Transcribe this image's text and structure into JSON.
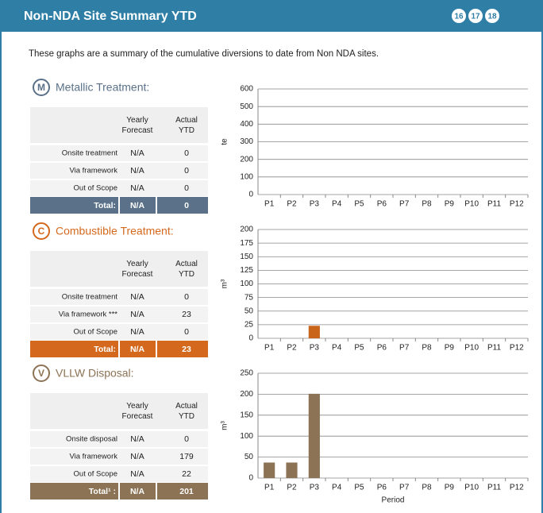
{
  "header": {
    "title": "Non-NDA Site Summary YTD",
    "badges": [
      "16",
      "17",
      "18"
    ]
  },
  "intro": "These graphs are a summary of the cumulative diversions to date from Non NDA sites.",
  "sections": [
    {
      "icon": "M",
      "title": "Metallic Treatment:",
      "color": "#5a7189",
      "table": {
        "columns": [
          "Yearly Forecast",
          "Actual YTD"
        ],
        "rows": [
          [
            "Onsite treatment",
            "N/A",
            "0"
          ],
          [
            "Via framework",
            "N/A",
            "0"
          ],
          [
            "Out of Scope",
            "N/A",
            "0"
          ]
        ],
        "total": [
          "Total:",
          "N/A",
          "0"
        ]
      }
    },
    {
      "icon": "C",
      "title": "Combustible Treatment:",
      "color": "#d4691e",
      "table": {
        "columns": [
          "Yearly Forecast",
          "Actual YTD"
        ],
        "rows": [
          [
            "Onsite treatment",
            "N/A",
            "0"
          ],
          [
            "Via framework ***",
            "N/A",
            "23"
          ],
          [
            "Out of Scope",
            "N/A",
            "0"
          ]
        ],
        "total": [
          "Total:",
          "N/A",
          "23"
        ]
      }
    },
    {
      "icon": "V",
      "title": "VLLW Disposal:",
      "color": "#8c7355",
      "table": {
        "columns": [
          "Yearly Forecast",
          "Actual YTD"
        ],
        "rows": [
          [
            "Onsite disposal",
            "N/A",
            "0"
          ],
          [
            "Via framework",
            "N/A",
            "179"
          ],
          [
            "Out of Scope",
            "N/A",
            "22"
          ]
        ],
        "total": [
          "Total¹ :",
          "N/A",
          "201"
        ]
      }
    }
  ],
  "chart_data": [
    {
      "type": "bar",
      "ylabel": "te",
      "categories": [
        "P1",
        "P2",
        "P3",
        "P4",
        "P5",
        "P6",
        "P7",
        "P8",
        "P9",
        "P10",
        "P11",
        "P12"
      ],
      "values": [
        0,
        0,
        0,
        null,
        null,
        null,
        null,
        null,
        null,
        null,
        null,
        null
      ],
      "color": "#5a7189",
      "ylim": [
        0,
        600
      ],
      "yticks": [
        0,
        100,
        200,
        300,
        400,
        500,
        600
      ],
      "grid": true
    },
    {
      "type": "bar",
      "ylabel": "m³",
      "categories": [
        "P1",
        "P2",
        "P3",
        "P4",
        "P5",
        "P6",
        "P7",
        "P8",
        "P9",
        "P10",
        "P11",
        "P12"
      ],
      "values": [
        0,
        0,
        23,
        null,
        null,
        null,
        null,
        null,
        null,
        null,
        null,
        null
      ],
      "color": "#c8651b",
      "ylim": [
        0,
        200
      ],
      "yticks": [
        0,
        25,
        50,
        75,
        100,
        125,
        150,
        175,
        200
      ],
      "grid": true
    },
    {
      "type": "bar",
      "ylabel": "m³",
      "xlabel": "Period",
      "categories": [
        "P1",
        "P2",
        "P3",
        "P4",
        "P5",
        "P6",
        "P7",
        "P8",
        "P9",
        "P10",
        "P11",
        "P12"
      ],
      "values": [
        37,
        37,
        201,
        null,
        null,
        null,
        null,
        null,
        null,
        null,
        null,
        null
      ],
      "color": "#8c7355",
      "ylim": [
        0,
        250
      ],
      "yticks": [
        0,
        50,
        100,
        150,
        200,
        250
      ],
      "grid": true
    }
  ]
}
